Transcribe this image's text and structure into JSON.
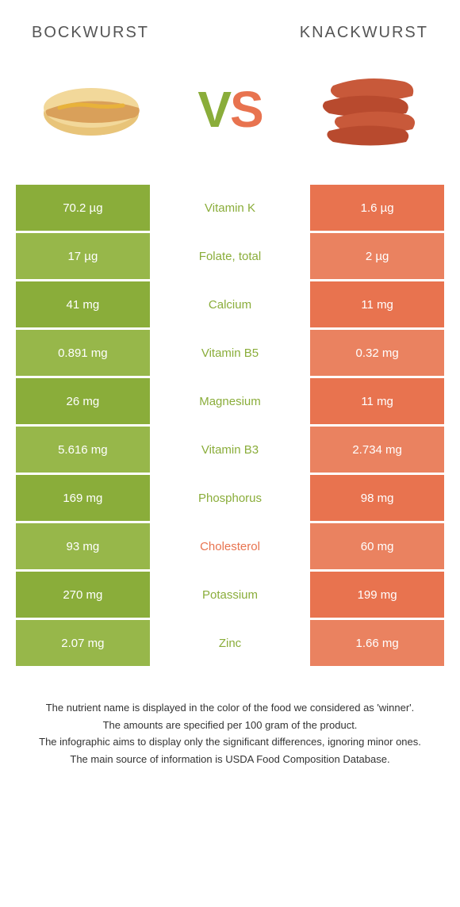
{
  "header": {
    "left_title": "BOCKWURST",
    "right_title": "KNACKWURST"
  },
  "vs": {
    "v": "V",
    "s": "S"
  },
  "colors": {
    "green": "#8aad3a",
    "green_alt": "#97b74a",
    "orange": "#e8734f",
    "orange_alt": "#ea8260",
    "text": "#333333",
    "white": "#ffffff"
  },
  "rows": [
    {
      "left": "70.2 µg",
      "mid": "Vitamin K",
      "right": "1.6 µg",
      "winner": "green"
    },
    {
      "left": "17 µg",
      "mid": "Folate, total",
      "right": "2 µg",
      "winner": "green"
    },
    {
      "left": "41 mg",
      "mid": "Calcium",
      "right": "11 mg",
      "winner": "green"
    },
    {
      "left": "0.891 mg",
      "mid": "Vitamin B5",
      "right": "0.32 mg",
      "winner": "green"
    },
    {
      "left": "26 mg",
      "mid": "Magnesium",
      "right": "11 mg",
      "winner": "green"
    },
    {
      "left": "5.616 mg",
      "mid": "Vitamin B3",
      "right": "2.734 mg",
      "winner": "green"
    },
    {
      "left": "169 mg",
      "mid": "Phosphorus",
      "right": "98 mg",
      "winner": "green"
    },
    {
      "left": "93 mg",
      "mid": "Cholesterol",
      "right": "60 mg",
      "winner": "orange"
    },
    {
      "left": "270 mg",
      "mid": "Potassium",
      "right": "199 mg",
      "winner": "green"
    },
    {
      "left": "2.07 mg",
      "mid": "Zinc",
      "right": "1.66 mg",
      "winner": "green"
    }
  ],
  "footer": {
    "line1": "The nutrient name is displayed in the color of the food we considered as 'winner'.",
    "line2": "The amounts are specified per 100 gram of the product.",
    "line3": "The infographic aims to display only the significant differences, ignoring minor ones.",
    "line4": "The main source of information is USDA Food Composition Database."
  }
}
